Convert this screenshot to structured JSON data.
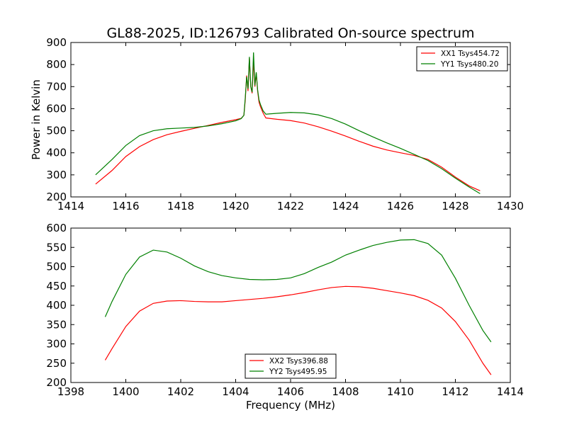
{
  "figure": {
    "title": "GL88-2025, ID:126793 Calibrated On-source spectrum",
    "xlabel": "Frequency (MHz)"
  },
  "chart_data": [
    {
      "type": "line",
      "ylabel": "Power in Kelvin",
      "xlim": [
        1414,
        1430
      ],
      "ylim": [
        200,
        900
      ],
      "xticks": [
        1414,
        1416,
        1418,
        1420,
        1422,
        1424,
        1426,
        1428,
        1430
      ],
      "yticks": [
        200,
        300,
        400,
        500,
        600,
        700,
        800,
        900
      ],
      "legend_position": "top-right",
      "series": [
        {
          "name": "XX1 Tsys454.72",
          "color": "#ff0000",
          "x": [
            1414.9,
            1415.5,
            1416,
            1416.5,
            1417,
            1417.5,
            1418,
            1418.5,
            1419,
            1419.5,
            1420,
            1420.2,
            1420.3,
            1420.35,
            1420.4,
            1420.45,
            1420.5,
            1420.55,
            1420.6,
            1420.65,
            1420.7,
            1420.75,
            1420.8,
            1420.85,
            1420.9,
            1421,
            1421.1,
            1421.5,
            1422,
            1422.5,
            1423,
            1423.5,
            1424,
            1424.5,
            1425,
            1425.5,
            1426,
            1426.5,
            1427,
            1427.5,
            1428,
            1428.5,
            1428.9
          ],
          "values": [
            258,
            320,
            383,
            428,
            460,
            482,
            497,
            511,
            524,
            538,
            550,
            556,
            570,
            640,
            750,
            680,
            830,
            700,
            670,
            820,
            700,
            760,
            680,
            630,
            610,
            580,
            558,
            552,
            546,
            535,
            518,
            498,
            476,
            452,
            430,
            413,
            400,
            388,
            370,
            335,
            290,
            250,
            228
          ]
        },
        {
          "name": "YY1 Tsys480.20",
          "color": "#008000",
          "x": [
            1414.9,
            1415.5,
            1416,
            1416.5,
            1417,
            1417.5,
            1418,
            1418.5,
            1419,
            1419.5,
            1420,
            1420.2,
            1420.3,
            1420.35,
            1420.4,
            1420.45,
            1420.5,
            1420.55,
            1420.6,
            1420.65,
            1420.7,
            1420.75,
            1420.8,
            1420.85,
            1420.9,
            1421,
            1421.1,
            1421.5,
            1422,
            1422.5,
            1423,
            1423.5,
            1424,
            1424.5,
            1425,
            1425.5,
            1426,
            1426.5,
            1427,
            1427.5,
            1428,
            1428.5,
            1428.9
          ],
          "values": [
            300,
            370,
            433,
            478,
            500,
            509,
            512,
            515,
            522,
            532,
            545,
            555,
            570,
            650,
            745,
            690,
            835,
            700,
            675,
            855,
            705,
            765,
            685,
            640,
            620,
            590,
            575,
            579,
            583,
            581,
            572,
            555,
            530,
            500,
            472,
            445,
            420,
            393,
            365,
            328,
            285,
            245,
            215
          ]
        }
      ]
    },
    {
      "type": "line",
      "ylabel": "",
      "xlim": [
        1398,
        1414
      ],
      "ylim": [
        200,
        600
      ],
      "xticks": [
        1398,
        1400,
        1402,
        1404,
        1406,
        1408,
        1410,
        1412,
        1414
      ],
      "yticks": [
        200,
        250,
        300,
        350,
        400,
        450,
        500,
        550,
        600
      ],
      "legend_position": "bottom-center",
      "series": [
        {
          "name": "XX2 Tsys396.88",
          "color": "#ff0000",
          "x": [
            1399.25,
            1399.5,
            1400,
            1400.5,
            1401,
            1401.5,
            1402,
            1402.5,
            1403,
            1403.5,
            1404,
            1404.5,
            1405,
            1405.5,
            1406,
            1406.5,
            1407,
            1407.5,
            1408,
            1408.5,
            1409,
            1409.5,
            1410,
            1410.5,
            1411,
            1411.5,
            1412,
            1412.5,
            1413,
            1413.3
          ],
          "values": [
            258,
            288,
            345,
            385,
            405,
            411,
            412,
            410,
            409,
            409,
            412,
            415,
            418,
            422,
            427,
            433,
            440,
            446,
            449,
            448,
            444,
            438,
            432,
            425,
            413,
            393,
            358,
            310,
            250,
            220
          ]
        },
        {
          "name": "YY2 Tsys495.95",
          "color": "#008000",
          "x": [
            1399.25,
            1399.5,
            1400,
            1400.5,
            1401,
            1401.5,
            1402,
            1402.5,
            1403,
            1403.5,
            1404,
            1404.5,
            1405,
            1405.5,
            1406,
            1406.5,
            1407,
            1407.5,
            1408,
            1408.5,
            1409,
            1409.5,
            1410,
            1410.5,
            1411,
            1411.5,
            1412,
            1412.5,
            1413,
            1413.3
          ],
          "values": [
            370,
            410,
            480,
            525,
            543,
            538,
            522,
            502,
            487,
            477,
            471,
            467,
            466,
            467,
            471,
            482,
            498,
            512,
            530,
            543,
            555,
            563,
            569,
            570,
            560,
            530,
            470,
            400,
            335,
            305
          ]
        }
      ]
    }
  ]
}
